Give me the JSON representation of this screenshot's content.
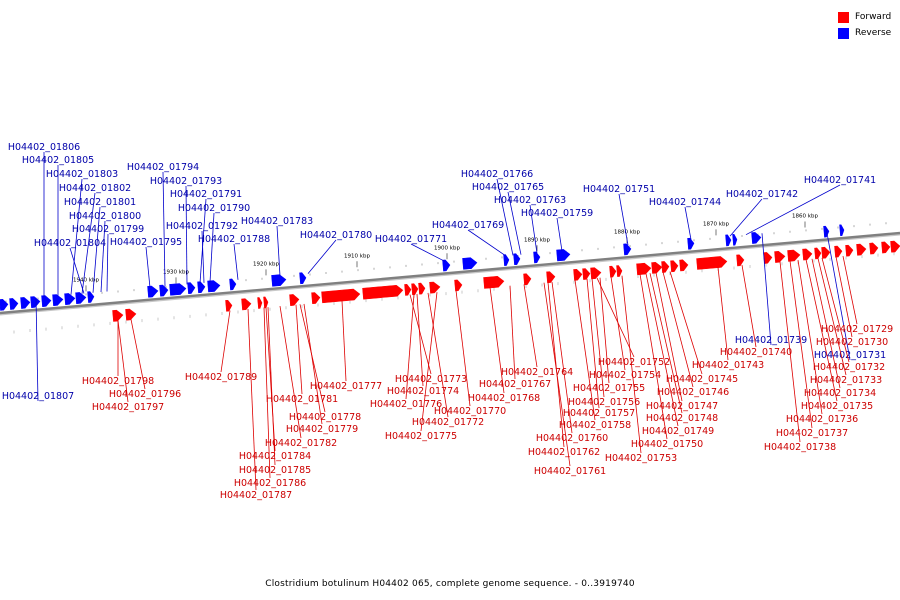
{
  "legend": {
    "forward_label": "Forward",
    "reverse_label": "Reverse"
  },
  "colors": {
    "forward": "#ff0000",
    "reverse": "#0000ff",
    "backbone": "#808080",
    "forward_label": "#cc0000",
    "reverse_label": "#0000aa"
  },
  "caption": "Clostridium botulinum H04402 065, complete genome sequence. - 0..3919740",
  "scale_labels": [
    "1940 kbp",
    "1930 kbp",
    "1920 kbp",
    "1910 kbp",
    "1900 kbp",
    "1890 kbp",
    "1880 kbp",
    "1870 kbp",
    "1860 kbp"
  ],
  "forward_labels": [
    "H04402_01798",
    "H04402_01796",
    "H04402_01797",
    "H04402_01789",
    "H04402_01781",
    "H04402_01778",
    "H04402_01779",
    "H04402_01782",
    "H04402_01784",
    "H04402_01785",
    "H04402_01786",
    "H04402_01787",
    "H04402_01777",
    "H04402_01776",
    "H04402_01775",
    "H04402_01773",
    "H04402_01774",
    "H04402_01772",
    "H04402_01770",
    "H04402_01764",
    "H04402_01767",
    "H04402_01768",
    "H04402_01760",
    "H04402_01762",
    "H04402_01761",
    "H04402_01752",
    "H04402_01754",
    "H04402_01755",
    "H04402_01756",
    "H04402_01757",
    "H04402_01758",
    "H04402_01753",
    "H04402_01743",
    "H04402_01745",
    "H04402_01746",
    "H04402_01747",
    "H04402_01748",
    "H04402_01749",
    "H04402_01750",
    "H04402_01740",
    "H04402_01729",
    "H04402_01730",
    "H04402_01732",
    "H04402_01733",
    "H04402_01734",
    "H04402_01735",
    "H04402_01736",
    "H04402_01737",
    "H04402_01738"
  ],
  "reverse_labels": [
    "H04402_01806",
    "H04402_01805",
    "H04402_01803",
    "H04402_01802",
    "H04402_01801",
    "H04402_01800",
    "H04402_01799",
    "H04402_01804",
    "H04402_01795",
    "H04402_01794",
    "H04402_01793",
    "H04402_01791",
    "H04402_01790",
    "H04402_01792",
    "H04402_01788",
    "H04402_01783",
    "H04402_01780",
    "H04402_01771",
    "H04402_01769",
    "H04402_01766",
    "H04402_01765",
    "H04402_01763",
    "H04402_01759",
    "H04402_01751",
    "H04402_01744",
    "H04402_01742",
    "H04402_01741",
    "H04402_01807",
    "H04402_01739",
    "H04402_01731"
  ]
}
